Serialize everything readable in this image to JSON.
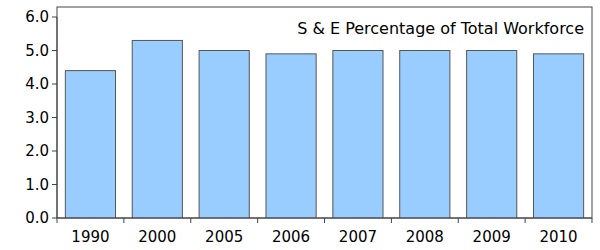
{
  "chart_data": {
    "type": "bar",
    "title": "S & E Percentage of Total Workforce",
    "categories": [
      "1990",
      "2000",
      "2005",
      "2006",
      "2007",
      "2008",
      "2009",
      "2010"
    ],
    "values": [
      4.4,
      5.3,
      5.0,
      4.9,
      5.0,
      5.0,
      5.0,
      4.9
    ],
    "color": "#99ccff",
    "ylim": [
      0,
      6
    ],
    "yticks": [
      {
        "value": 0,
        "label": "0.0"
      },
      {
        "value": 1,
        "label": "1.0"
      },
      {
        "value": 2,
        "label": "2.0"
      },
      {
        "value": 3,
        "label": "3.0"
      },
      {
        "value": 4,
        "label": "4.0"
      },
      {
        "value": 5,
        "label": "5.0"
      },
      {
        "value": 6,
        "label": "6.0"
      }
    ],
    "grid": false
  }
}
